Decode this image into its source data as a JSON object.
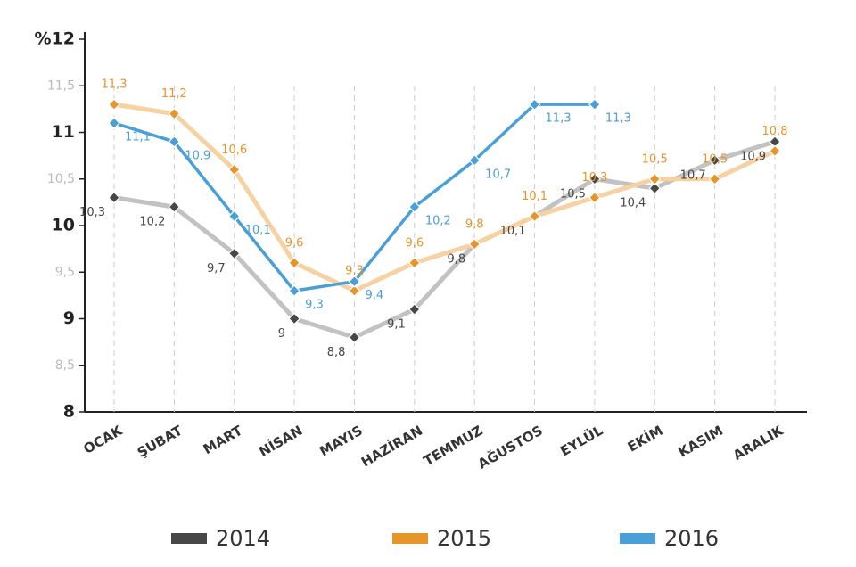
{
  "chart_data": {
    "type": "line",
    "categories": [
      "OCAK",
      "ŞUBAT",
      "MART",
      "NİSAN",
      "MAYIS",
      "HAZİRAN",
      "TEMMUZ",
      "AĞUSTOS",
      "EYLÜL",
      "EKİM",
      "KASIM",
      "ARALIK"
    ],
    "series": [
      {
        "name": "2014",
        "color": "#474747",
        "line_color": "#c2c2c2",
        "values": [
          10.3,
          10.2,
          9.7,
          9,
          8.8,
          9.1,
          9.8,
          10.1,
          10.5,
          10.4,
          10.7,
          10.9
        ],
        "value_labels": [
          "10,3",
          "10,2",
          "9,7",
          "9",
          "8,8",
          "9,1",
          "9,8",
          "10,1",
          "10,5",
          "10,4",
          "10,7",
          "10,9"
        ]
      },
      {
        "name": "2015",
        "color": "#e5952a",
        "line_color": "#f6d2a2",
        "values": [
          11.3,
          11.2,
          10.6,
          9.6,
          9.3,
          9.6,
          9.8,
          10.1,
          10.3,
          10.5,
          10.5,
          10.8
        ],
        "value_labels": [
          "11,3",
          "11,2",
          "10,6",
          "9,6",
          "9,3",
          "9,6",
          "9,8",
          "10,1",
          "10,3",
          "10,5",
          "10,5",
          "10,8"
        ]
      },
      {
        "name": "2016",
        "color": "#4a9fd8",
        "line_color": "#4a9fd8",
        "values": [
          11.1,
          10.9,
          10.1,
          9.3,
          9.4,
          10.2,
          10.7,
          11.3,
          11.3,
          null,
          null,
          null
        ],
        "value_labels": [
          "11,1",
          "10,9",
          "10,1",
          "9,3",
          "9,4",
          "10,2",
          "10,7",
          "11,3",
          "11,3",
          null,
          null,
          null
        ]
      }
    ],
    "ylim": [
      8,
      12
    ],
    "yticks": [
      8,
      {
        "value": 8.5,
        "label": "8,5"
      },
      9,
      {
        "value": 9.5,
        "label": "9,5"
      },
      10,
      {
        "value": 10.5,
        "label": "10,5"
      },
      11,
      {
        "value": 11.5,
        "label": "11,5"
      },
      {
        "value": 12,
        "label": "%12"
      }
    ]
  }
}
